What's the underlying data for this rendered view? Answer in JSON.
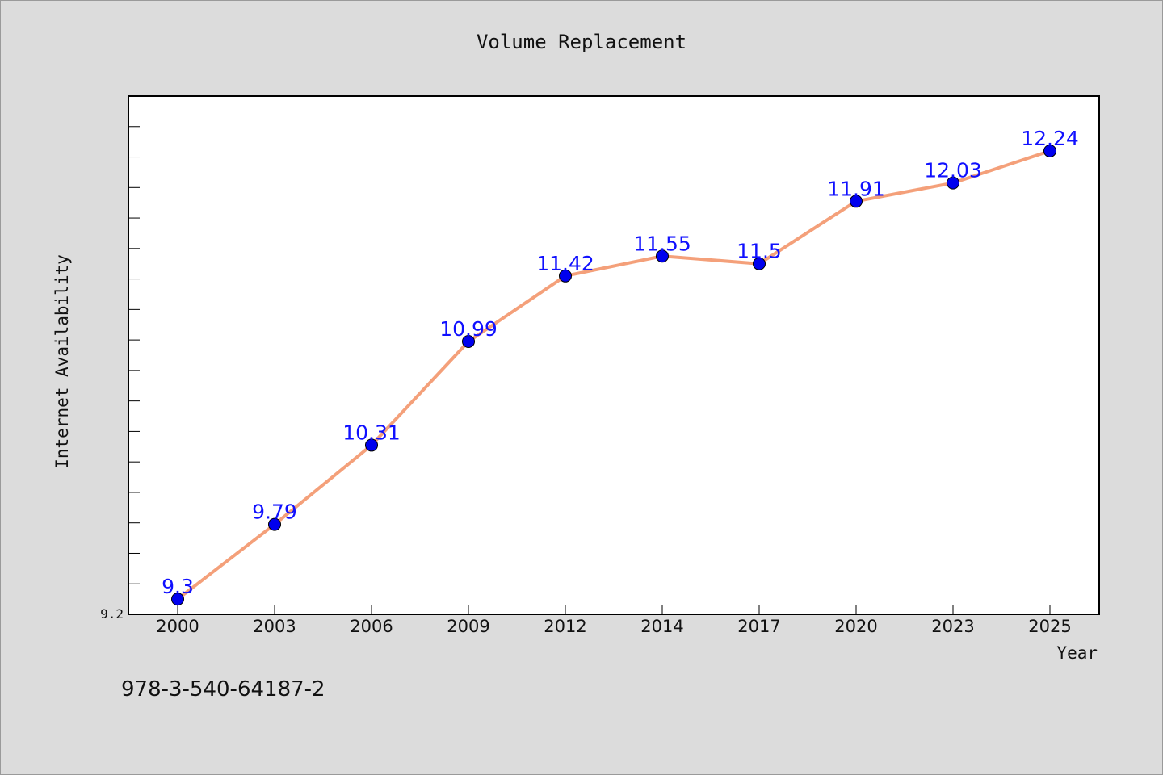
{
  "chart_data": {
    "type": "line",
    "title": "Volume Replacement",
    "xlabel": "Year",
    "ylabel": "Internet Availability",
    "categories": [
      "2000",
      "2003",
      "2006",
      "2009",
      "2012",
      "2014",
      "2017",
      "2020",
      "2023",
      "2025"
    ],
    "series": [
      {
        "values": [
          9.3,
          9.79,
          10.31,
          10.99,
          11.42,
          11.55,
          11.5,
          11.91,
          12.03,
          12.24
        ],
        "labels": [
          "9.3",
          "9.79",
          "10.31",
          "10.99",
          "11.42",
          "11.55",
          "11.5",
          "11.91",
          "12.03",
          "12.24"
        ],
        "line_color": "#f4a07a",
        "marker_color": "#0000ee"
      }
    ],
    "ylim": [
      9.2,
      12.6
    ],
    "y_tick_label": "9.2",
    "grid": false,
    "legend": "none"
  },
  "footer": {
    "isbn": "978-3-540-64187-2"
  }
}
